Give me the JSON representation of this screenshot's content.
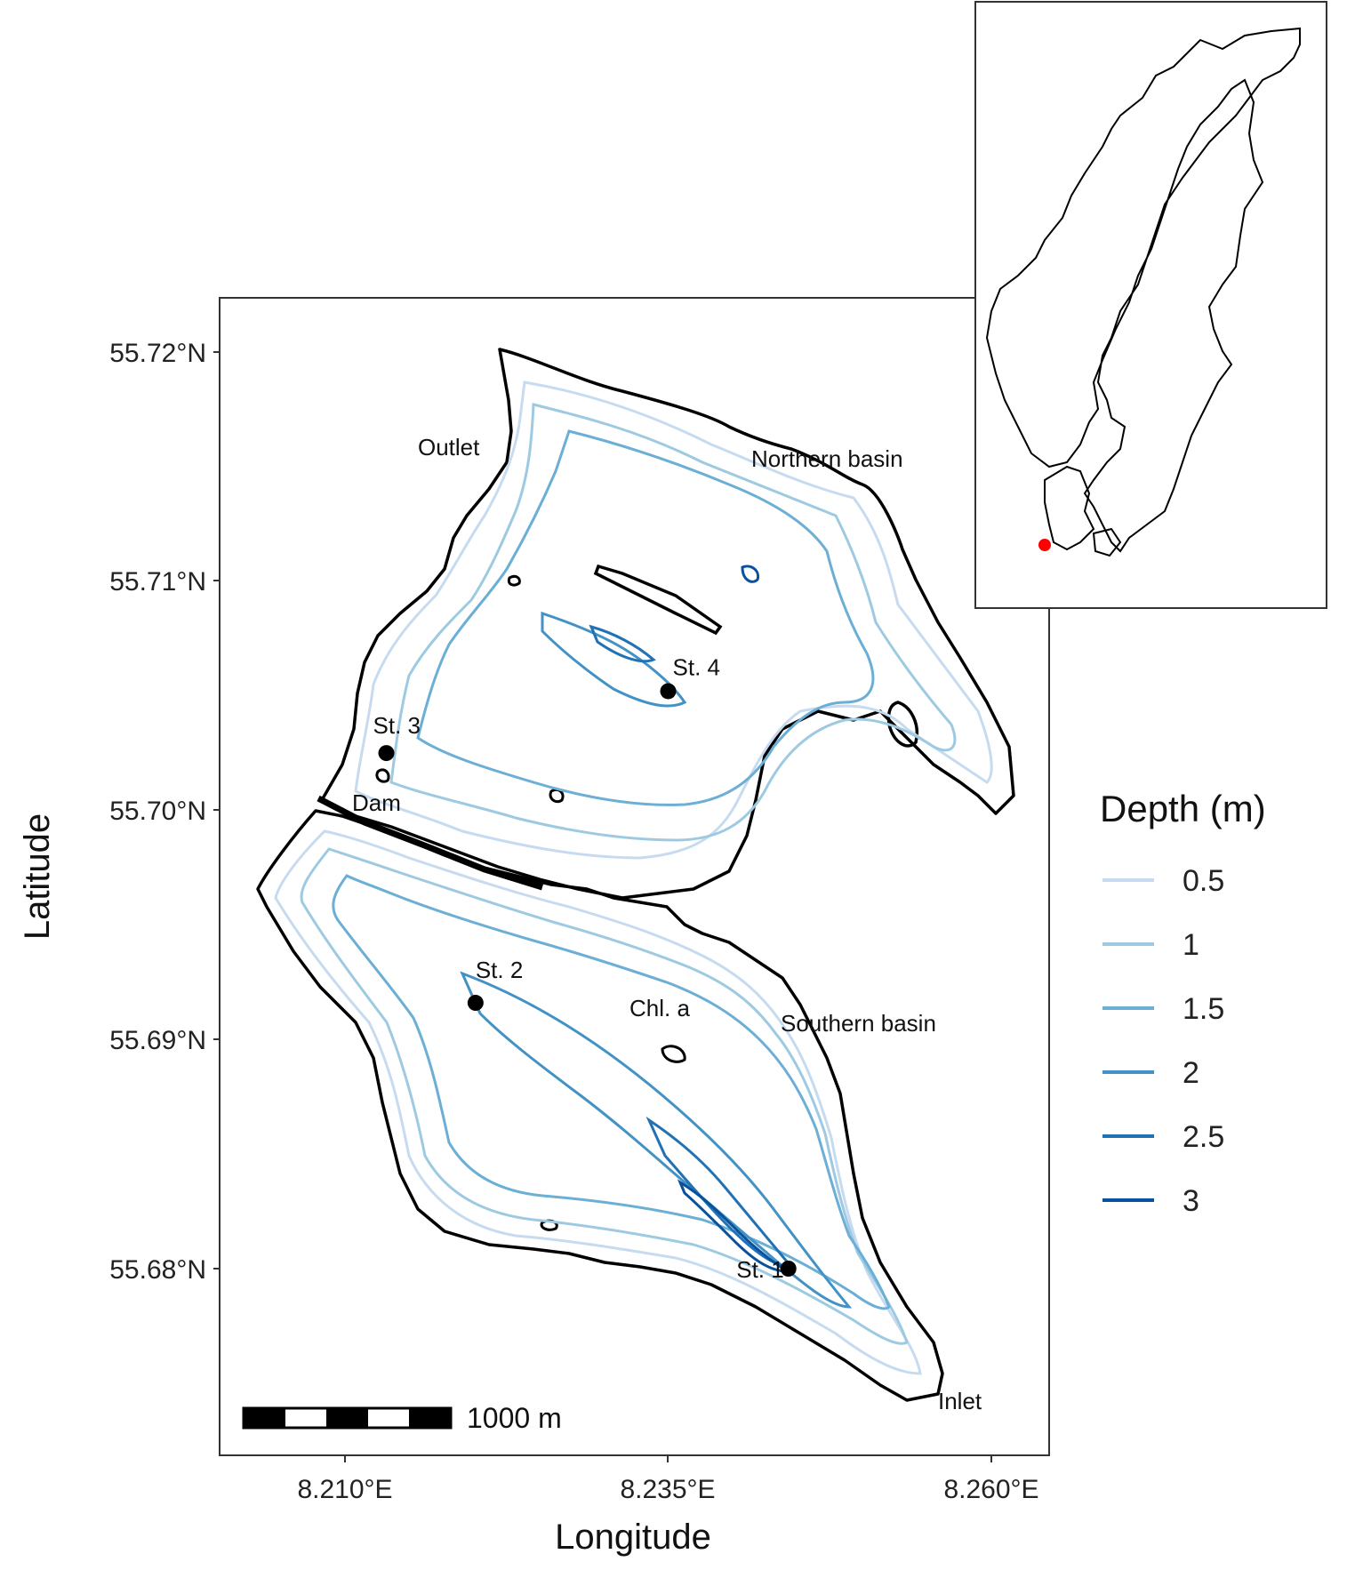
{
  "axes": {
    "x_title": "Longitude",
    "y_title": "Latitude",
    "x_ticks": [
      "8.210°E",
      "8.235°E",
      "8.260°E"
    ],
    "y_ticks": [
      "55.72°N",
      "55.71°N",
      "55.70°N",
      "55.69°N",
      "55.68°N"
    ]
  },
  "labels": {
    "outlet": "Outlet",
    "northern_basin": "Northern basin",
    "dam": "Dam",
    "southern_basin": "Southern basin",
    "inlet": "Inlet",
    "chl_a": "Chl. a"
  },
  "stations": [
    {
      "name": "St. 1",
      "lon": 8.2443,
      "lat": 55.68
    },
    {
      "name": "St. 2",
      "lon": 8.2201,
      "lat": 55.6916
    },
    {
      "name": "St. 3",
      "lon": 8.2132,
      "lat": 55.7025
    },
    {
      "name": "St. 4",
      "lon": 8.235,
      "lat": 55.7052
    }
  ],
  "legend": {
    "title": "Depth (m)",
    "items": [
      {
        "label": "0.5",
        "color": "#c6dbef"
      },
      {
        "label": "1",
        "color": "#9ecae1"
      },
      {
        "label": "1.5",
        "color": "#6baed6"
      },
      {
        "label": "2",
        "color": "#4292c6"
      },
      {
        "label": "2.5",
        "color": "#2171b5"
      },
      {
        "label": "3",
        "color": "#08519c"
      }
    ]
  },
  "scale_bar": {
    "label": "1000 m"
  },
  "inset": {
    "marker_color": "#ff0000"
  }
}
